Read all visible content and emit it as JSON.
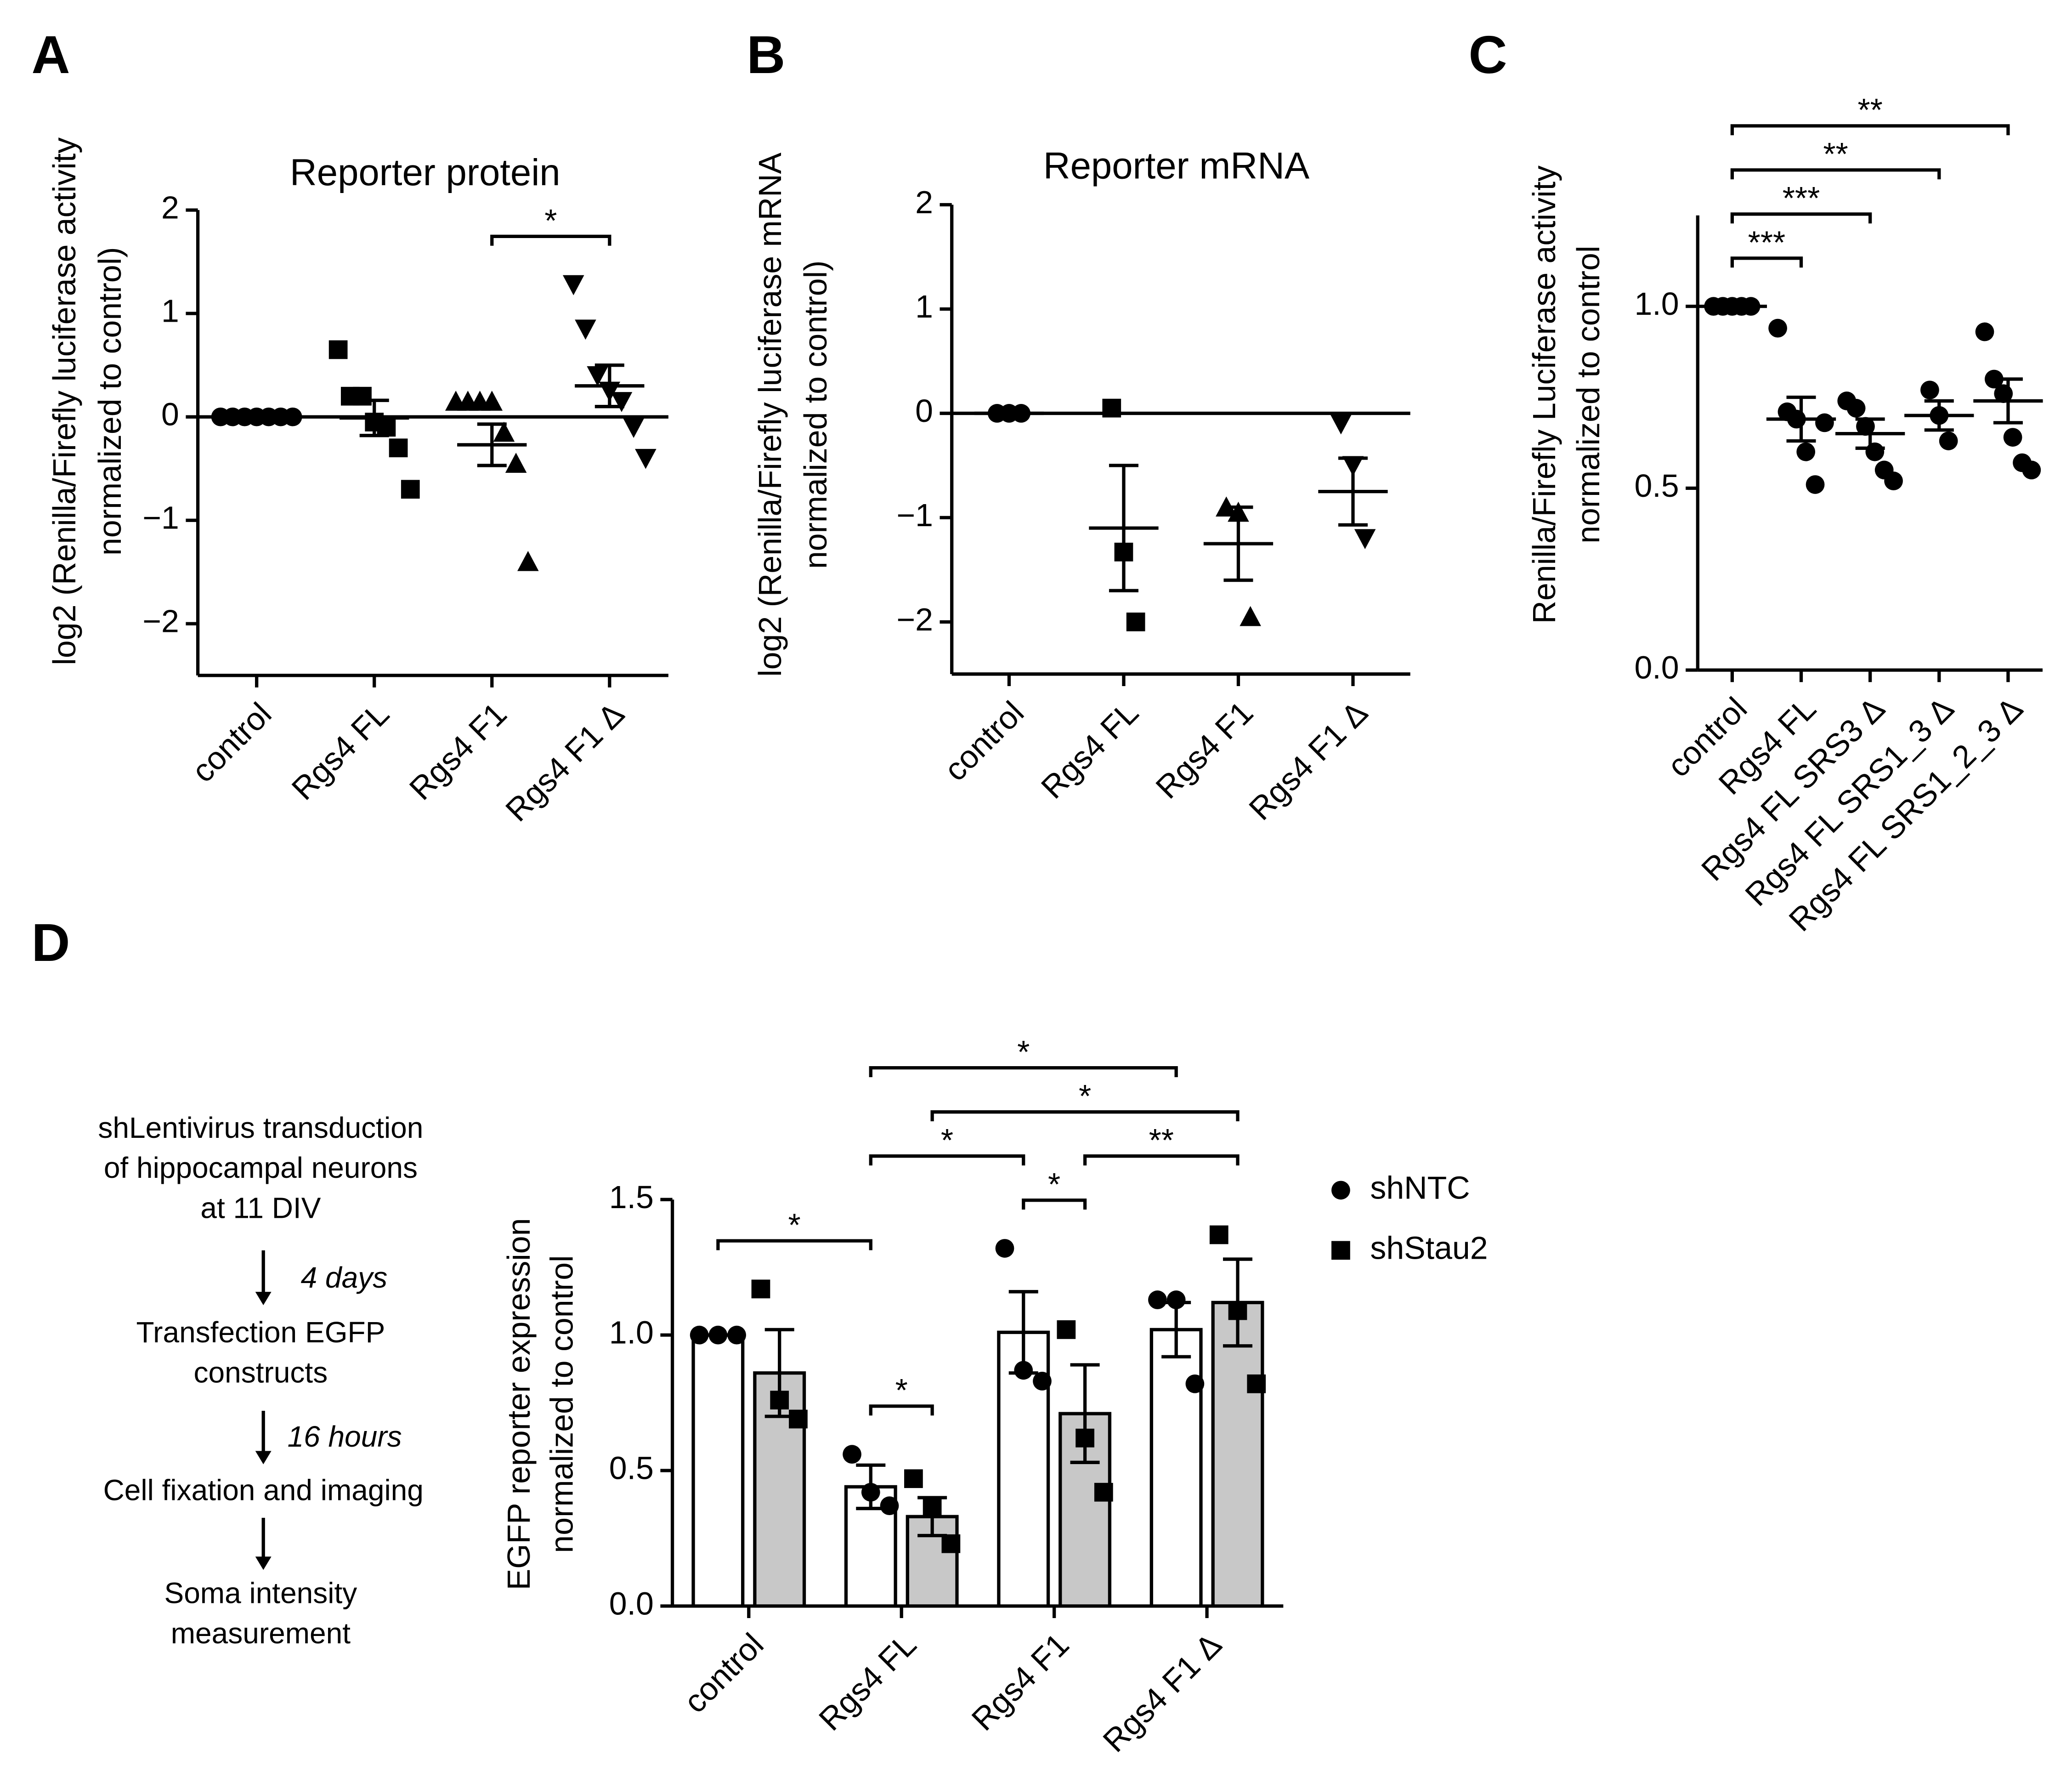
{
  "chart_data": [
    {
      "panel": "A",
      "type": "dot",
      "title": "Reporter protein",
      "ylabel": [
        "log2 (Renilla/Firefly luciferase activity",
        "normalized to control)"
      ],
      "categories": [
        "control",
        "Rgs4 FL",
        "Rgs4 F1",
        "Rgs4 F1 Δ"
      ],
      "markers": [
        "circle",
        "square",
        "triangle",
        "triangle-down"
      ],
      "color": "#000000",
      "points": [
        [
          0,
          0,
          0,
          0,
          0,
          0,
          0
        ],
        [
          0.65,
          0.2,
          0.2,
          -0.05,
          -0.1,
          -0.3,
          -0.7
        ],
        [
          0.15,
          0.15,
          0.15,
          0.15,
          -0.15,
          -0.45,
          -1.4
        ],
        [
          1.28,
          0.85,
          0.4,
          0.25,
          0.15,
          -0.1,
          -0.4
        ]
      ],
      "means": [
        0,
        -0.01,
        -0.27,
        0.3
      ],
      "sems": [
        0,
        0.17,
        0.2,
        0.2
      ],
      "ylim": [
        -2.5,
        2
      ],
      "yticks": [
        {
          "value": -2,
          "label": "−2"
        },
        {
          "value": -1,
          "label": "−1"
        },
        0,
        1,
        2
      ],
      "comparisons": [
        {
          "groups": [
            "Rgs4 F1",
            "Rgs4 F1 Δ"
          ],
          "label": "*"
        }
      ]
    },
    {
      "panel": "B",
      "type": "dot",
      "title": "Reporter mRNA",
      "ylabel": [
        "log2 (Renilla/Firefly luciferase mRNA",
        "normalized to control)"
      ],
      "categories": [
        "control",
        "Rgs4 FL",
        "Rgs4 F1",
        "Rgs4 F1 Δ"
      ],
      "markers": [
        "circle",
        "square",
        "triangle",
        "triangle-down"
      ],
      "color": "#000000",
      "points": [
        [
          0,
          0,
          0
        ],
        [
          0.05,
          -1.33,
          -2.0
        ],
        [
          -0.9,
          -0.95,
          -1.95
        ],
        [
          -0.1,
          -0.5,
          -1.2
        ]
      ],
      "means": [
        0,
        -1.1,
        -1.25,
        -0.75
      ],
      "sems": [
        0,
        0.6,
        0.35,
        0.32
      ],
      "ylim": [
        -2.5,
        2
      ],
      "yticks": [
        {
          "value": -2,
          "label": "−2"
        },
        {
          "value": -1,
          "label": "−1"
        },
        0,
        1,
        2
      ],
      "comparisons": []
    },
    {
      "panel": "C",
      "type": "dot",
      "ylabel": [
        "Renilla/Firefly Luciferase activity",
        "normalized to control"
      ],
      "categories": [
        "control",
        "Rgs4 FL",
        "Rgs4 FL SRS3 Δ",
        "Rgs4 FL SRS1_3 Δ",
        "Rgs4 FL SRS1_2_3 Δ"
      ],
      "marker": "circle",
      "color": "#000000",
      "points": [
        [
          1,
          1,
          1,
          1,
          1
        ],
        [
          0.94,
          0.71,
          0.69,
          0.6,
          0.51,
          0.68
        ],
        [
          0.74,
          0.72,
          0.67,
          0.6,
          0.55,
          0.52
        ],
        [
          0.77,
          0.7,
          0.63
        ],
        [
          0.93,
          0.8,
          0.76,
          0.64,
          0.57,
          0.55
        ]
      ],
      "means": [
        1,
        0.69,
        0.65,
        0.7,
        0.74
      ],
      "sems": [
        0,
        0.06,
        0.04,
        0.04,
        0.06
      ],
      "ylim": [
        0,
        1.25
      ],
      "yticks": [
        {
          "value": 0,
          "label": "0.0"
        },
        {
          "value": 0.5,
          "label": "0.5"
        },
        {
          "value": 1,
          "label": "1.0"
        }
      ],
      "comparisons": [
        {
          "groups": [
            "control",
            "Rgs4 FL"
          ],
          "label": "***"
        },
        {
          "groups": [
            "control",
            "Rgs4 FL SRS3 Δ"
          ],
          "label": "***"
        },
        {
          "groups": [
            "control",
            "Rgs4 FL SRS1_3 Δ"
          ],
          "label": "**"
        },
        {
          "groups": [
            "control",
            "Rgs4 FL SRS1_2_3 Δ"
          ],
          "label": "**"
        }
      ]
    },
    {
      "panel": "D",
      "type": "bar",
      "ylabel": [
        "EGFP reporter expression",
        "normalized to control"
      ],
      "categories": [
        "control",
        "Rgs4 FL",
        "Rgs4 F1",
        "Rgs4 F1 Δ"
      ],
      "series": [
        {
          "name": "shNTC",
          "color": "#ffffff",
          "marker": "circle",
          "values": [
            1.0,
            0.44,
            1.01,
            1.02
          ],
          "sems": [
            0,
            0.08,
            0.15,
            0.1
          ],
          "points": [
            [
              1,
              1,
              1
            ],
            [
              0.56,
              0.42,
              0.37
            ],
            [
              1.32,
              0.87,
              0.83
            ],
            [
              1.13,
              1.13,
              0.82
            ]
          ]
        },
        {
          "name": "shStau2",
          "color": "#c8c8c8",
          "marker": "square",
          "values": [
            0.86,
            0.33,
            0.71,
            1.12
          ],
          "sems": [
            0.16,
            0.07,
            0.18,
            0.16
          ],
          "points": [
            [
              1.17,
              0.76,
              0.69
            ],
            [
              0.47,
              0.36,
              0.23
            ],
            [
              1.02,
              0.62,
              0.42
            ],
            [
              1.37,
              1.09,
              0.82
            ]
          ]
        }
      ],
      "ylim": [
        0,
        1.5
      ],
      "yticks": [
        {
          "value": 0,
          "label": "0.0"
        },
        {
          "value": 0.5,
          "label": "0.5"
        },
        {
          "value": 1,
          "label": "1.0"
        },
        {
          "value": 1.5,
          "label": "1.5"
        }
      ],
      "comparisons": [
        {
          "groups": [
            {
              "series": "shNTC",
              "category": "Rgs4 FL"
            },
            {
              "series": "shStau2",
              "category": "Rgs4 FL"
            }
          ],
          "label": "*"
        },
        {
          "groups": [
            {
              "series": "shNTC",
              "category": "control"
            },
            {
              "series": "shNTC",
              "category": "Rgs4 FL"
            }
          ],
          "label": "*"
        },
        {
          "groups": [
            {
              "series": "shNTC",
              "category": "Rgs4 F1"
            },
            {
              "series": "shStau2",
              "category": "Rgs4 F1"
            }
          ],
          "label": "*"
        },
        {
          "groups": [
            {
              "series": "shNTC",
              "category": "Rgs4 FL"
            },
            {
              "series": "shNTC",
              "category": "Rgs4 F1"
            }
          ],
          "label": "*"
        },
        {
          "groups": [
            {
              "series": "shStau2",
              "category": "Rgs4 F1"
            },
            {
              "series": "shStau2",
              "category": "Rgs4 F1 Δ"
            }
          ],
          "label": "**"
        },
        {
          "groups": [
            {
              "series": "shStau2",
              "category": "Rgs4 FL"
            },
            {
              "series": "shStau2",
              "category": "Rgs4 F1 Δ"
            }
          ],
          "label": "*"
        },
        {
          "groups": [
            {
              "series": "shNTC",
              "category": "Rgs4 FL"
            },
            {
              "series": "shNTC",
              "category": "Rgs4 F1 Δ"
            }
          ],
          "label": "*"
        }
      ]
    }
  ],
  "flow": {
    "steps": [
      [
        "shLentivirus transduction",
        "of hippocampal neurons",
        "at 11 DIV"
      ],
      [
        "Transfection EGFP",
        "constructs"
      ],
      [
        "Cell fixation and imaging"
      ],
      [
        "Soma intensity",
        "measurement"
      ]
    ],
    "intervals": [
      "4 days",
      "16 hours"
    ]
  }
}
